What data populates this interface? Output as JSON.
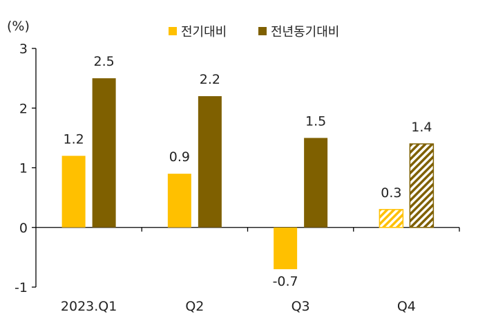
{
  "chart_data": {
    "type": "bar",
    "title": "",
    "unit_label": "(%)",
    "categories": [
      "2023.Q1",
      "Q2",
      "Q3",
      "Q4"
    ],
    "series": [
      {
        "name": "전기대비",
        "values": [
          1.2,
          0.9,
          -0.7,
          0.3
        ],
        "labels": [
          "1.2",
          "0.9",
          "-0.7",
          "0.3"
        ],
        "color": "#FFC000"
      },
      {
        "name": "전년동기대비",
        "values": [
          2.5,
          2.2,
          1.5,
          1.4
        ],
        "labels": [
          "2.5",
          "2.2",
          "1.5",
          "1.4"
        ],
        "color": "#7F6000"
      }
    ],
    "hatched_category": "Q4",
    "ylim": [
      -1,
      3
    ],
    "yticks": [
      -1,
      0,
      1,
      2,
      3
    ],
    "ytick_labels": [
      "-1",
      "0",
      "1",
      "2",
      "3"
    ],
    "xlabel": "",
    "ylabel": "",
    "legend_position": "top"
  }
}
